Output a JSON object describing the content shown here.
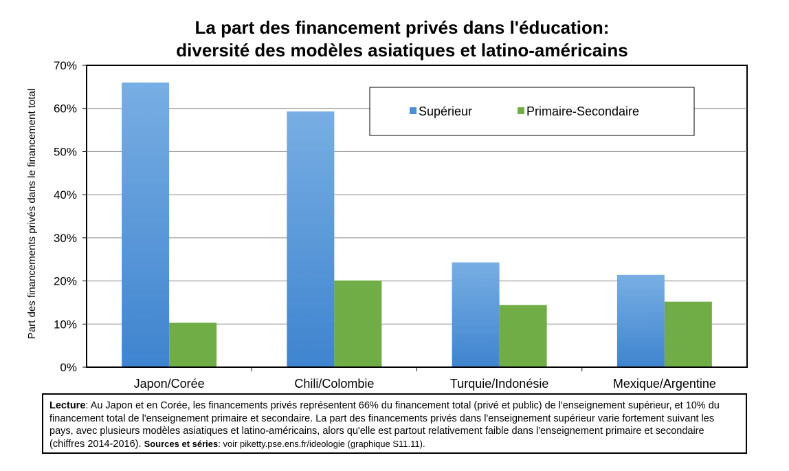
{
  "chart_data": {
    "type": "bar",
    "title_line1": "La part des financement privés dans l'éducation:",
    "title_line2": "diversité des modèles asiatiques et latino-américains",
    "xlabel": "",
    "ylabel": "Part des financements privés dans le financement total",
    "ylim": [
      0,
      70
    ],
    "yticks": [
      "0%",
      "10%",
      "20%",
      "30%",
      "40%",
      "50%",
      "60%",
      "70%"
    ],
    "categories": [
      "Japon/Corée",
      "Chili/Colombie",
      "Turquie/Indonésie",
      "Mexique/Argentine"
    ],
    "series": [
      {
        "name": "Supérieur",
        "values": [
          66,
          59.3,
          24.3,
          21.4
        ],
        "color": "#4a8fd8"
      },
      {
        "name": "Primaire-Secondaire",
        "values": [
          10.3,
          20.1,
          14.4,
          15.2
        ],
        "color": "#70ad47"
      }
    ],
    "grid": true,
    "legend_position": "top-right"
  },
  "note": {
    "lecture_label": "Lecture",
    "lecture_text": ": Au Japon et en Corée, les financements privés représentent 66% du financement total (privé et public) de l'enseignement supérieur, et 10% du financement total de l'enseignement primaire et secondaire. La part des financements privés dans l'enseignement supérieur varie fortement suivant les pays, avec plusieurs modèles asiatiques et latino-américains, alors qu'elle est partout relativement faible dans l'enseignement primaire et secondaire (chiffres 2014-2016). ",
    "sources_label": "Sources et séries",
    "sources_text": ": voir piketty.pse.ens.fr/ideologie (graphique S11.11)."
  }
}
